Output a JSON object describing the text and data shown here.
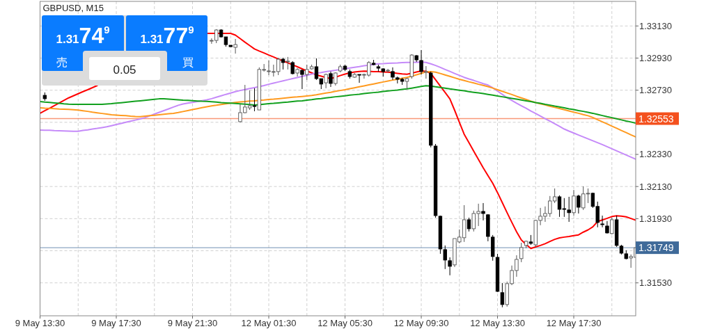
{
  "chart_data": {
    "type": "candlestick",
    "title": "GBPUSD, M15",
    "categories": [
      "9 May 13:30",
      null,
      null,
      null,
      null,
      null,
      null,
      null,
      null,
      null,
      null,
      null,
      null,
      null,
      null,
      null,
      "9 May 17:30",
      null,
      null,
      null,
      null,
      null,
      null,
      null,
      null,
      null,
      null,
      null,
      null,
      null,
      null,
      null,
      "9 May 21:30",
      null,
      null,
      null,
      null,
      null,
      null,
      null,
      null,
      null,
      null,
      null,
      null,
      null,
      null,
      null,
      "12 May 01:30",
      null,
      null,
      null,
      null,
      null,
      null,
      null,
      null,
      null,
      null,
      null,
      null,
      null,
      null,
      null,
      "12 May 05:30",
      null,
      null,
      null,
      null,
      null,
      null,
      null,
      null,
      null,
      null,
      null,
      null,
      null,
      null,
      null,
      "12 May 09:30",
      null,
      null,
      null,
      null,
      null,
      null,
      null,
      null,
      null,
      null,
      null,
      null,
      null,
      null,
      null,
      "12 May 13:30",
      null,
      null,
      null,
      null,
      null,
      null,
      null,
      null,
      null,
      null,
      null,
      null,
      null,
      null,
      null,
      "12 May 17:30",
      null,
      null,
      null,
      null,
      null,
      null,
      null,
      null,
      null,
      null,
      null,
      null,
      null
    ],
    "ohlc": [
      null,
      [
        1.32698,
        1.32716,
        1.32664,
        1.32677
      ],
      null,
      null,
      null,
      null,
      null,
      null,
      null,
      null,
      null,
      null,
      null,
      null,
      null,
      null,
      null,
      null,
      null,
      null,
      null,
      null,
      null,
      null,
      null,
      null,
      null,
      null,
      null,
      null,
      null,
      null,
      null,
      null,
      null,
      null,
      [
        1.3304,
        1.33053,
        1.33019,
        1.3304
      ],
      [
        1.3304,
        1.3311,
        1.33023,
        1.33105
      ],
      [
        1.33105,
        1.3311,
        1.33058,
        1.33062
      ],
      [
        1.33062,
        1.33062,
        1.33001,
        1.33014
      ],
      [
        1.3301,
        1.3301,
        1.33001,
        1.33001
      ],
      [
        1.32997,
        1.33049,
        1.32958,
        1.33014
      ],
      [
        1.32534,
        1.32642,
        1.32529,
        1.3259
      ],
      [
        1.3259,
        1.32763,
        1.32586,
        1.32625
      ],
      [
        1.3262,
        1.32729,
        1.32607,
        1.32633
      ],
      [
        1.32633,
        1.32742,
        1.32599,
        1.32629
      ],
      [
        1.32607,
        1.32872,
        1.32607,
        1.32859
      ],
      [
        1.32859,
        1.32893,
        1.32846,
        1.32859
      ],
      [
        1.3285,
        1.32915,
        1.32824,
        1.3285
      ],
      [
        1.32846,
        1.32889,
        1.32815,
        1.32846
      ],
      [
        1.32846,
        1.32932,
        1.32824,
        1.32923
      ],
      [
        1.32923,
        1.32932,
        1.32859,
        1.32902
      ],
      [
        1.32911,
        1.32937,
        1.32859,
        1.32911
      ],
      [
        1.32902,
        1.32911,
        1.32828,
        1.32833
      ],
      [
        1.32837,
        1.32867,
        1.32815,
        1.32859
      ],
      [
        1.32854,
        1.32859,
        1.32737,
        1.32828
      ],
      [
        1.32828,
        1.32889,
        1.32794,
        1.32859
      ],
      [
        1.32863,
        1.32889,
        1.32859,
        1.32876
      ],
      [
        1.32876,
        1.32928,
        1.32794,
        1.32802
      ],
      [
        1.32802,
        1.32802,
        1.32737,
        1.32768
      ],
      [
        1.32776,
        1.32833,
        1.32742,
        1.32828
      ],
      [
        1.32833,
        1.32846,
        1.3275,
        1.32772
      ],
      [
        1.32772,
        1.32841,
        1.32759,
        1.32837
      ],
      [
        1.3285,
        1.32889,
        1.32841,
        1.32876
      ],
      [
        1.3288,
        1.32889,
        1.3285,
        1.32859
      ],
      [
        1.32846,
        1.32859,
        1.32802,
        1.32815
      ],
      [
        1.32811,
        1.32837,
        1.32807,
        1.32828
      ],
      [
        1.32828,
        1.32828,
        1.32776,
        1.32824
      ],
      [
        1.32824,
        1.32833,
        1.32802,
        1.32828
      ],
      [
        1.32824,
        1.32911,
        1.32815,
        1.32902
      ],
      [
        1.32898,
        1.32919,
        1.32885,
        1.32889
      ],
      [
        1.32876,
        1.32889,
        1.32846,
        1.32867
      ],
      [
        1.32863,
        1.32867,
        1.32815,
        1.32846
      ],
      [
        1.32854,
        1.32863,
        1.32841,
        1.32854
      ],
      [
        1.32846,
        1.32872,
        1.32794,
        1.32811
      ],
      [
        1.32807,
        1.32815,
        1.32772,
        1.32798
      ],
      [
        1.32798,
        1.32807,
        1.32763,
        1.32785
      ],
      [
        1.32785,
        1.32807,
        1.32737,
        1.32802
      ],
      [
        1.32815,
        1.32954,
        1.32802,
        1.32949
      ],
      [
        1.32945,
        1.32949,
        1.32906,
        1.32919
      ],
      [
        1.32915,
        1.3298,
        1.32828,
        1.32846
      ],
      [
        1.32841,
        1.3288,
        1.32802,
        1.32846
      ],
      [
        1.32837,
        1.32846,
        1.32374,
        1.32387
      ],
      [
        1.32382,
        1.32395,
        1.31936,
        1.31949
      ],
      [
        1.31945,
        1.31949,
        1.31711,
        1.31741
      ],
      [
        1.31737,
        1.31763,
        1.31616,
        1.31672
      ],
      [
        1.31668,
        1.31689,
        1.31577,
        1.31633
      ],
      [
        1.31642,
        1.31806,
        1.31629,
        1.31806
      ],
      [
        1.31785,
        1.31863,
        1.31776,
        1.31815
      ],
      [
        1.31811,
        1.32014,
        1.31785,
        1.31923
      ],
      [
        1.31923,
        1.31936,
        1.3185,
        1.31867
      ],
      [
        1.31867,
        1.3198,
        1.3185,
        1.31962
      ],
      [
        1.31962,
        1.32023,
        1.31884,
        1.31975
      ],
      [
        1.31975,
        1.32027,
        1.31919,
        1.31962
      ],
      [
        1.31954,
        1.31958,
        1.31789,
        1.31819
      ],
      [
        1.31815,
        1.31828,
        1.31668,
        1.31694
      ],
      [
        1.31689,
        1.31711,
        1.31473,
        1.31477
      ],
      [
        1.31469,
        1.31529,
        1.31378,
        1.31395
      ],
      [
        1.31395,
        1.31538,
        1.31382,
        1.31525
      ],
      [
        1.31525,
        1.31638,
        1.31516,
        1.31607
      ],
      [
        1.31607,
        1.31702,
        1.31568,
        1.31676
      ],
      [
        1.31681,
        1.3178,
        1.31659,
        1.3175
      ],
      [
        1.31763,
        1.31793,
        1.31746,
        1.31789
      ],
      [
        1.31785,
        1.31828,
        1.31767,
        1.31776
      ],
      [
        1.31767,
        1.31923,
        1.31754,
        1.31919
      ],
      [
        1.31919,
        1.31997,
        1.31889,
        1.31945
      ],
      [
        1.31945,
        1.32006,
        1.3191,
        1.31962
      ],
      [
        1.31962,
        1.32071,
        1.31941,
        1.3204
      ],
      [
        1.3204,
        1.32118,
        1.32027,
        1.32066
      ],
      [
        1.32066,
        1.32075,
        1.31941,
        1.31988
      ],
      [
        1.31992,
        1.32058,
        1.31941,
        1.31988
      ],
      [
        1.31984,
        1.32066,
        1.3191,
        1.31967
      ],
      [
        1.31967,
        1.32109,
        1.31949,
        1.32071
      ],
      [
        1.32071,
        1.32079,
        1.31962,
        1.32001
      ],
      [
        1.31997,
        1.32131,
        1.31984,
        1.32084
      ],
      [
        1.32088,
        1.32118,
        1.32027,
        1.32088
      ],
      [
        1.32088,
        1.32092,
        1.31997,
        1.32006
      ],
      [
        1.32006,
        1.32036,
        1.31876,
        1.31906
      ],
      [
        1.31897,
        1.31949,
        1.31876,
        1.31893
      ],
      [
        1.31884,
        1.31915,
        1.31837,
        1.31841
      ],
      [
        1.31837,
        1.31936,
        1.31832,
        1.31923
      ],
      [
        1.31923,
        1.31949,
        1.31754,
        1.31763
      ],
      [
        1.31759,
        1.31767,
        1.31707,
        1.31715
      ],
      [
        1.31711,
        1.31733,
        1.31676,
        1.31681
      ],
      [
        1.31685,
        1.31707,
        1.31624,
        1.31694
      ],
      [
        1.31689,
        1.3175,
        1.31689,
        1.31749
      ]
    ],
    "series": [
      {
        "type": "line",
        "color": "#ff0000",
        "values": [
          1.32586,
          1.32602,
          1.32618,
          1.32634,
          1.3265,
          1.32666,
          1.32682,
          1.32695,
          1.32708,
          1.32721,
          1.32733,
          1.32746,
          1.32759,
          null,
          null,
          null,
          null,
          null,
          null,
          null,
          null,
          null,
          null,
          null,
          null,
          null,
          null,
          null,
          null,
          null,
          null,
          null,
          null,
          null,
          null,
          1.33084,
          1.33084,
          1.33084,
          1.33084,
          1.33084,
          1.33084,
          1.33073,
          1.33051,
          1.33029,
          1.33008,
          1.32987,
          1.32974,
          1.32962,
          1.32949,
          1.32937,
          1.32924,
          1.32912,
          1.329,
          1.32888,
          1.32876,
          1.32863,
          1.3285,
          1.32838,
          1.32825,
          1.32817,
          1.32809,
          1.32802,
          1.32811,
          1.32821,
          1.3283,
          1.32838,
          1.32843,
          1.32847,
          1.32849,
          1.32848,
          1.32846,
          1.32845,
          1.32843,
          1.32842,
          1.32839,
          1.32835,
          1.32831,
          1.32829,
          1.32836,
          1.32843,
          1.3285,
          1.32848,
          1.32834,
          1.32795,
          1.32755,
          1.32716,
          1.32676,
          1.32605,
          1.3253,
          1.32456,
          1.32404,
          1.32351,
          1.32299,
          1.32247,
          1.32198,
          1.3215,
          1.32092,
          1.3203,
          1.31968,
          1.31907,
          1.31848,
          1.31797,
          1.31769,
          1.31744,
          1.31754,
          1.31763,
          1.31774,
          1.31788,
          1.31801,
          1.3181,
          1.31815,
          1.31819,
          1.31824,
          1.31829,
          1.31846,
          1.3186,
          1.31879,
          1.31912,
          1.31922,
          1.31932,
          1.31943,
          1.31948,
          1.31946,
          1.31941,
          1.31931,
          1.3192
        ]
      },
      {
        "type": "line",
        "color": "#c58af9",
        "values": [
          1.32482,
          1.32481,
          1.3248,
          1.32478,
          1.32477,
          1.32476,
          1.32475,
          1.32474,
          1.32474,
          1.32479,
          1.32483,
          1.32488,
          1.32492,
          1.32497,
          1.32502,
          1.32509,
          1.32516,
          1.32523,
          1.3253,
          1.32537,
          1.32544,
          1.32551,
          1.32559,
          1.3257,
          1.32581,
          1.32592,
          1.32603,
          1.32614,
          1.32625,
          1.32636,
          1.32644,
          1.32649,
          1.32654,
          1.32659,
          1.32665,
          1.3267,
          1.32677,
          1.32686,
          1.32695,
          1.32704,
          1.32712,
          1.32721,
          1.32728,
          1.32734,
          1.3274,
          1.32746,
          1.32752,
          1.32759,
          1.32767,
          1.32774,
          1.32781,
          1.32788,
          1.32795,
          1.32802,
          1.32809,
          1.32816,
          1.32823,
          1.3283,
          1.32836,
          1.3284,
          1.32845,
          1.3285,
          1.32854,
          1.32859,
          1.32864,
          1.32868,
          1.32873,
          1.32877,
          1.32882,
          1.32886,
          1.32891,
          1.32894,
          1.32895,
          1.32897,
          1.32899,
          1.329,
          1.32902,
          1.32903,
          1.32903,
          1.32904,
          1.32905,
          1.32903,
          1.32894,
          1.32884,
          1.32872,
          1.32859,
          1.32847,
          1.32834,
          1.32822,
          1.3281,
          1.328,
          1.32791,
          1.32781,
          1.32771,
          1.32762,
          1.32745,
          1.32724,
          1.32704,
          1.32683,
          1.32666,
          1.32649,
          1.32633,
          1.32617,
          1.326,
          1.32585,
          1.32569,
          1.32553,
          1.32537,
          1.32521,
          1.32505,
          1.32488,
          1.32475,
          1.32463,
          1.32451,
          1.32439,
          1.32427,
          1.32415,
          1.32403,
          1.32391,
          1.32378,
          1.32365,
          1.32352,
          1.32339,
          1.32326,
          1.32313,
          1.323
        ]
      },
      {
        "type": "line",
        "color": "#ff9a1f",
        "values": [
          1.3262,
          1.32618,
          1.32617,
          1.32615,
          1.32613,
          1.32612,
          1.3261,
          1.32608,
          1.32606,
          1.32602,
          1.32598,
          1.32593,
          1.32589,
          1.32585,
          1.32581,
          1.32577,
          1.32575,
          1.32573,
          1.32571,
          1.32568,
          1.32566,
          1.32565,
          1.32568,
          1.32571,
          1.32574,
          1.32577,
          1.3258,
          1.32583,
          1.32586,
          1.32591,
          1.32597,
          1.32603,
          1.32609,
          1.32615,
          1.32621,
          1.32627,
          1.32632,
          1.32636,
          1.32641,
          1.32645,
          1.32649,
          1.32654,
          1.32657,
          1.32659,
          1.32662,
          1.32664,
          1.32667,
          1.32669,
          1.32672,
          1.32674,
          1.32677,
          1.3268,
          1.32683,
          1.32686,
          1.32688,
          1.32691,
          1.32694,
          1.32697,
          1.32701,
          1.32707,
          1.32712,
          1.32717,
          1.32723,
          1.32728,
          1.32733,
          1.32739,
          1.32745,
          1.32751,
          1.32757,
          1.32763,
          1.32769,
          1.32775,
          1.32781,
          1.32787,
          1.32793,
          1.32798,
          1.32804,
          1.3281,
          1.32817,
          1.32826,
          1.32835,
          1.32844,
          1.32846,
          1.32842,
          1.32834,
          1.32825,
          1.32816,
          1.32807,
          1.32798,
          1.3279,
          1.32782,
          1.32775,
          1.32767,
          1.3276,
          1.32752,
          1.32743,
          1.32733,
          1.32723,
          1.32713,
          1.32703,
          1.32692,
          1.32682,
          1.32672,
          1.32662,
          1.32653,
          1.32645,
          1.32638,
          1.3263,
          1.32623,
          1.32616,
          1.32608,
          1.32601,
          1.32593,
          1.32586,
          1.32578,
          1.32571,
          1.3256,
          1.32546,
          1.32533,
          1.3252,
          1.32506,
          1.32493,
          1.32479,
          1.32466,
          1.32452,
          1.32439
        ]
      },
      {
        "type": "line",
        "color": "#11a01e",
        "values": [
          1.32659,
          1.32656,
          1.32654,
          1.32651,
          1.32648,
          1.32645,
          1.32643,
          1.32642,
          1.32642,
          1.32642,
          1.32642,
          1.32642,
          1.32642,
          1.32642,
          1.32644,
          1.32646,
          1.32649,
          1.32652,
          1.32655,
          1.32658,
          1.32661,
          1.32664,
          1.32667,
          1.3267,
          1.32673,
          1.32676,
          1.32676,
          1.32674,
          1.32672,
          1.3267,
          1.32668,
          1.32667,
          1.32665,
          1.32663,
          1.32661,
          1.3266,
          1.32658,
          1.32656,
          1.32653,
          1.32651,
          1.32649,
          1.32647,
          1.32645,
          1.32643,
          1.32641,
          1.32638,
          1.3264,
          1.32643,
          1.32646,
          1.32648,
          1.32651,
          1.32654,
          1.32656,
          1.32659,
          1.32662,
          1.32664,
          1.32668,
          1.32671,
          1.32675,
          1.32678,
          1.32682,
          1.32685,
          1.32689,
          1.32692,
          1.32695,
          1.32699,
          1.32702,
          1.32705,
          1.32709,
          1.32712,
          1.32715,
          1.32718,
          1.32722,
          1.32725,
          1.32728,
          1.32731,
          1.32735,
          1.32738,
          1.32743,
          1.32748,
          1.32753,
          1.32758,
          1.32756,
          1.32751,
          1.32747,
          1.32743,
          1.32738,
          1.32734,
          1.3273,
          1.32726,
          1.32721,
          1.32717,
          1.32713,
          1.32709,
          1.32704,
          1.32699,
          1.32694,
          1.32689,
          1.32684,
          1.32679,
          1.32674,
          1.32669,
          1.32664,
          1.32659,
          1.32653,
          1.32648,
          1.32642,
          1.32637,
          1.32631,
          1.32626,
          1.3262,
          1.32614,
          1.32609,
          1.32603,
          1.32598,
          1.32592,
          1.32586,
          1.32579,
          1.32572,
          1.32565,
          1.32559,
          1.32552,
          1.32545,
          1.32538,
          1.32532,
          1.32525
        ]
      }
    ],
    "ylim": [
      1.31325,
      1.33283
    ],
    "yticks": [
      {
        "value": 1.3313,
        "label": "1.33130"
      },
      {
        "value": 1.3293,
        "label": "1.32930"
      },
      {
        "value": 1.3273,
        "label": "1.32730"
      },
      {
        "value": 1.3253,
        "label": null
      },
      {
        "value": 1.3233,
        "label": "1.32330"
      },
      {
        "value": 1.3213,
        "label": "1.32130"
      },
      {
        "value": 1.3193,
        "label": "1.31930"
      },
      {
        "value": 1.3173,
        "label": null
      },
      {
        "value": 1.3153,
        "label": "1.31530"
      }
    ],
    "grid": true,
    "ref_lines": [
      {
        "axis": "y",
        "value": 1.32553,
        "label": "1.32553",
        "color": "#f4511e"
      },
      {
        "axis": "y",
        "value": 1.31749,
        "label": "1.31749",
        "color": "#3f6a99"
      }
    ],
    "annotations": [
      "1.3174$^{9}$",
      "売",
      "1.3177$^{9}$",
      "買",
      "0.05"
    ]
  }
}
